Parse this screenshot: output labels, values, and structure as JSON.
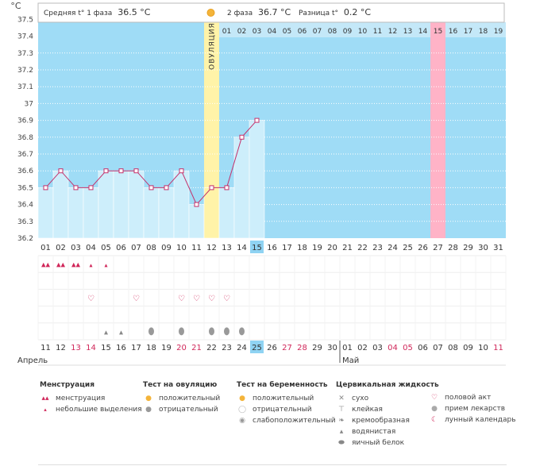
{
  "header": {
    "unit": "°C",
    "phase1_label": "Средняя t° 1 фаза",
    "phase1_value": "36.5 °C",
    "phase2_label": "2 фаза",
    "phase2_value": "36.7 °C",
    "diff_label": "Разница t°",
    "diff_value": "0.2 °C",
    "ovulation_label": "ОВУЛЯЦИЯ"
  },
  "colors": {
    "phase1_fill": "#cdeefb",
    "background": "#9fdcf6",
    "ovulation": "#fff3a8",
    "expected": "#ffb3c7",
    "line": "#c4316b",
    "red_day": "#d0275a",
    "highlight": "#8fd3f3"
  },
  "chart_data": {
    "type": "line",
    "ylim": [
      36.2,
      37.5
    ],
    "y_ticks": [
      "36.2",
      "36.3",
      "36.4",
      "36.5",
      "36.6",
      "36.7",
      "36.8",
      "36.9",
      "37",
      "37.1",
      "37.2",
      "37.3",
      "37.4",
      "37.5"
    ],
    "cycle_days": [
      "01",
      "02",
      "03",
      "04",
      "05",
      "06",
      "07",
      "08",
      "09",
      "10",
      "11",
      "12",
      "13",
      "14",
      "15",
      "16",
      "17",
      "18",
      "19",
      "20",
      "21",
      "22",
      "23",
      "24",
      "25",
      "26",
      "27",
      "28",
      "29",
      "30",
      "31"
    ],
    "temperatures": [
      36.5,
      36.6,
      36.5,
      36.5,
      36.6,
      36.6,
      36.6,
      36.5,
      36.5,
      36.6,
      36.4,
      36.5,
      36.5,
      36.8,
      36.9
    ],
    "phase2_day_labels": [
      "01",
      "02",
      "03",
      "04",
      "05",
      "06",
      "07",
      "08",
      "09",
      "10",
      "11",
      "12",
      "13",
      "14",
      "15",
      "16",
      "17",
      "18",
      "19"
    ],
    "ovulation_day": 12,
    "expected_period_day": 27,
    "current_day": 15,
    "calendar_dates": [
      "11",
      "12",
      "13",
      "14",
      "15",
      "16",
      "17",
      "18",
      "19",
      "20",
      "21",
      "22",
      "23",
      "24",
      "25",
      "26",
      "27",
      "28",
      "29",
      "30",
      "01",
      "02",
      "03",
      "04",
      "05",
      "06",
      "07",
      "08",
      "09",
      "10",
      "11"
    ],
    "red_dates_index": [
      3,
      4,
      10,
      11,
      17,
      18,
      24,
      25,
      31
    ],
    "month_start": "Апрель",
    "month_next": "Май",
    "month_next_index": 21,
    "current_date_index": 15
  },
  "marks": {
    "menstruation_big": [
      1,
      2,
      3
    ],
    "menstruation_small": [
      4,
      5
    ],
    "intercourse": [
      4,
      7,
      10,
      11,
      12,
      13
    ],
    "discharge_light": [
      5,
      6
    ],
    "discharge_egg": [
      8,
      10,
      12,
      13,
      14
    ]
  },
  "legend": {
    "menstruation": {
      "title": "Менструация",
      "items": [
        "менструация",
        "небольшие выделения"
      ]
    },
    "ovulation_test": {
      "title": "Тест на овуляцию",
      "items": [
        "положительный",
        "отрицательный"
      ]
    },
    "pregnancy_test": {
      "title": "Тест на беременность",
      "items": [
        "положительный",
        "отрицательный",
        "слабоположительный"
      ]
    },
    "cervical": {
      "title": "Цервикальная жидкость",
      "items": [
        "сухо",
        "клейкая",
        "кремообразная",
        "водянистая",
        "яичный белок"
      ]
    },
    "other": {
      "items": [
        "половой акт",
        "прием лекарств",
        "лунный календарь"
      ]
    }
  }
}
